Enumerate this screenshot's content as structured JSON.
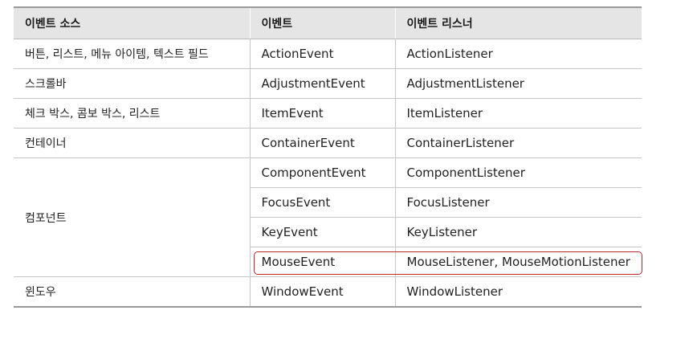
{
  "table": {
    "headers": [
      "이벤트 소스",
      "이벤트",
      "이벤트 리스너"
    ],
    "rows": [
      {
        "source": "버튼, 리스트, 메뉴 아이템, 텍스트 필드",
        "event": "ActionEvent",
        "listener": "ActionListener"
      },
      {
        "source": "스크롤바",
        "event": "AdjustmentEvent",
        "listener": "AdjustmentListener"
      },
      {
        "source": "체크 박스, 콤보 박스, 리스트",
        "event": "ItemEvent",
        "listener": "ItemListener"
      },
      {
        "source": "컨테이너",
        "event": "ContainerEvent",
        "listener": "ContainerListener"
      },
      {
        "source": "컴포넌트",
        "event": "ComponentEvent",
        "listener": "ComponentListener"
      },
      {
        "source": "",
        "event": "FocusEvent",
        "listener": "FocusListener"
      },
      {
        "source": "",
        "event": "KeyEvent",
        "listener": "KeyListener"
      },
      {
        "source": "",
        "event": "MouseEvent",
        "listener": "MouseListener, MouseMotionListener"
      },
      {
        "source": "윈도우",
        "event": "WindowEvent",
        "listener": "WindowListener"
      }
    ]
  },
  "colors": {
    "header_bg": "#e5e5e5",
    "highlight": "#c0282d"
  }
}
